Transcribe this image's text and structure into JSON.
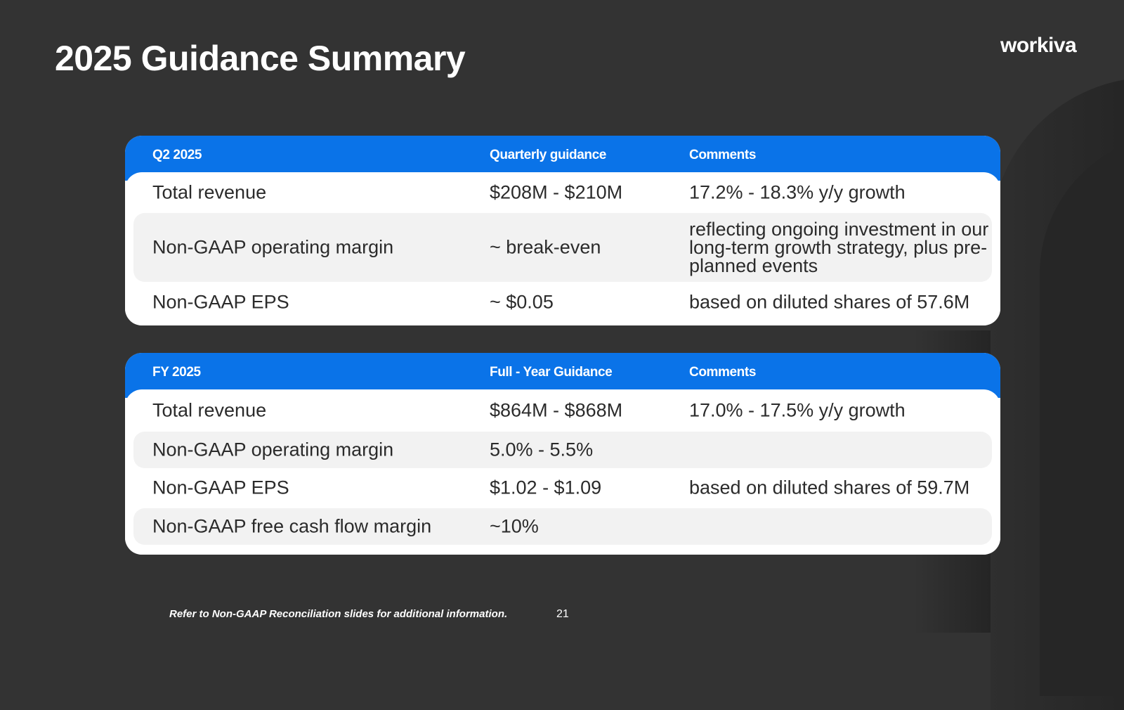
{
  "title": "2025 Guidance Summary",
  "logo_text": "workiva",
  "colors": {
    "accent": "#0a73e8",
    "background": "#333333",
    "row_shade": "#f2f2f2"
  },
  "q2": {
    "headers": [
      "Q2 2025",
      "Quarterly guidance",
      "Comments"
    ],
    "rows": [
      {
        "metric": "Total revenue",
        "value": "$208M - $210M",
        "comment": "17.2% - 18.3% y/y growth"
      },
      {
        "metric": "Non-GAAP operating margin",
        "value": "~ break-even",
        "comment": "reflecting ongoing  investment in our long-term growth strategy, plus pre-planned events"
      },
      {
        "metric": "Non-GAAP EPS",
        "value": "~ $0.05",
        "comment": "based on diluted shares of 57.6M"
      }
    ]
  },
  "fy": {
    "headers": [
      "FY 2025",
      "Full - Year Guidance",
      "Comments"
    ],
    "rows": [
      {
        "metric": "Total revenue",
        "value": "$864M - $868M",
        "comment": "17.0% - 17.5% y/y growth"
      },
      {
        "metric": "Non-GAAP operating margin",
        "value": "5.0% - 5.5%",
        "comment": ""
      },
      {
        "metric": "Non-GAAP EPS",
        "value": "$1.02 - $1.09",
        "comment": "based on diluted shares of 59.7M"
      },
      {
        "metric": "Non-GAAP free cash flow margin",
        "value": "~10%",
        "comment": ""
      }
    ]
  },
  "footnote": "Refer to Non-GAAP Reconciliation slides for additional information.",
  "page_number": "21"
}
